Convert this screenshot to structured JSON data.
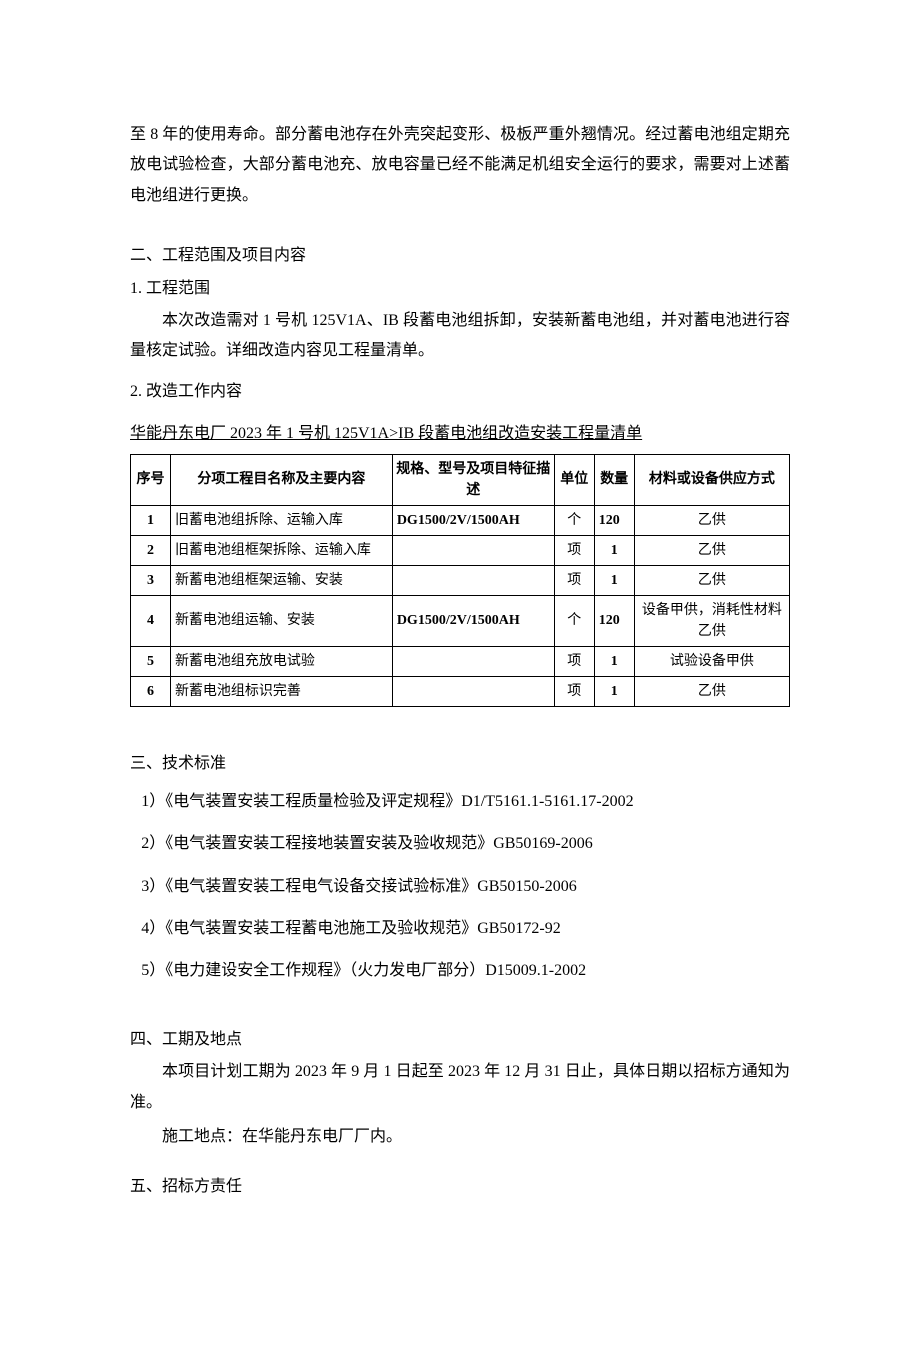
{
  "intro_paragraph": "至 8 年的使用寿命。部分蓄电池存在外壳突起变形、极板严重外翘情况。经过蓄电池组定期充放电试验检查，大部分蓄电池充、放电容量已经不能满足机组安全运行的要求，需要对上述蓄电池组进行更换。",
  "section2": {
    "heading": "二、工程范围及项目内容",
    "sub1_heading": "1. 工程范围",
    "sub1_body": "本次改造需对 1 号机 125V1A、IB 段蓄电池组拆卸，安装新蓄电池组，并对蓄电池进行容量核定试验。详细改造内容见工程量清单。",
    "sub2_heading": "2. 改造工作内容",
    "table_caption": "华能丹东电厂 2023 年 1 号机 125V1A>IB 段蓄电池组改造安装工程量清单",
    "table": {
      "columns": [
        "序号",
        "分项工程目名称及主要内容",
        "规格、型号及项目特征描述",
        "单位",
        "数量",
        "材料或设备供应方式"
      ],
      "rows": [
        {
          "idx": "1",
          "name": "旧蓄电池组拆除、运输入库",
          "spec": "DG1500/2V/1500AH",
          "unit": "个",
          "qty": "120",
          "supply": "乙供"
        },
        {
          "idx": "2",
          "name": "旧蓄电池组框架拆除、运输入库",
          "spec": "",
          "unit": "项",
          "qty": "1",
          "supply": "乙供"
        },
        {
          "idx": "3",
          "name": "新蓄电池组框架运输、安装",
          "spec": "",
          "unit": "项",
          "qty": "1",
          "supply": "乙供"
        },
        {
          "idx": "4",
          "name": "新蓄电池组运输、安装",
          "spec": "DG1500/2V/1500AH",
          "unit": "个",
          "qty": "120",
          "supply": "设备甲供，消耗性材料乙供"
        },
        {
          "idx": "5",
          "name": "新蓄电池组充放电试验",
          "spec": "",
          "unit": "项",
          "qty": "1",
          "supply": "试验设备甲供"
        },
        {
          "idx": "6",
          "name": "新蓄电池组标识完善",
          "spec": "",
          "unit": "项",
          "qty": "1",
          "supply": "乙供"
        }
      ]
    }
  },
  "section3": {
    "heading": "三、技术标准",
    "items": [
      "1）《电气装置安装工程质量检验及评定规程》D1/T5161.1-5161.17-2002",
      "2）《电气装置安装工程接地装置安装及验收规范》GB50169-2006",
      "3）《电气装置安装工程电气设备交接试验标准》GB50150-2006",
      "4）《电气装置安装工程蓄电池施工及验收规范》GB50172-92",
      "5）《电力建设安全工作规程》（火力发电厂部分）D15009.1-2002"
    ]
  },
  "section4": {
    "heading": "四、工期及地点",
    "body1": "本项目计划工期为 2023 年 9 月 1 日起至 2023 年 12 月 31 日止，具体日期以招标方通知为准。",
    "body2": "施工地点：在华能丹东电厂厂内。"
  },
  "section5": {
    "heading": "五、招标方责任"
  }
}
